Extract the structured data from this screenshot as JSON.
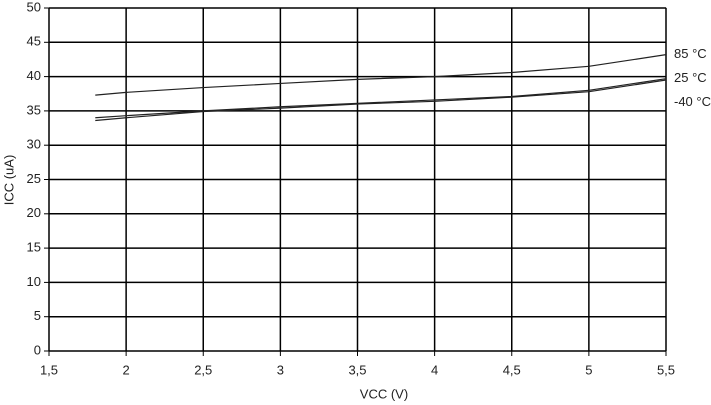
{
  "chart_data": {
    "type": "line",
    "x_label": "VCC (V)",
    "y_label": "ICC (uA)",
    "x": [
      1.8,
      2,
      2.5,
      3,
      3.5,
      4,
      4.5,
      5,
      5.5
    ],
    "series": [
      {
        "name": "85 °C",
        "color": "#222222",
        "values": [
          37.3,
          37.7,
          38.4,
          39.0,
          39.6,
          40.0,
          40.6,
          41.5,
          43.2
        ]
      },
      {
        "name": "25 °C",
        "color": "#222222",
        "values": [
          34.0,
          34.3,
          35.0,
          35.6,
          36.1,
          36.6,
          37.1,
          38.0,
          39.7
        ]
      },
      {
        "name": "-40 °C",
        "color": "#222222",
        "values": [
          33.6,
          34.0,
          34.9,
          35.4,
          36.0,
          36.4,
          37.0,
          37.8,
          39.5
        ]
      }
    ],
    "xlim": [
      1.5,
      5.5
    ],
    "xticks": [
      {
        "value": 1.5,
        "label": "1,5"
      },
      2,
      {
        "value": 2.5,
        "label": "2,5"
      },
      3,
      {
        "value": 3.5,
        "label": "3,5"
      },
      4,
      {
        "value": 4.5,
        "label": "4,5"
      },
      5,
      {
        "value": 5.5,
        "label": "5,5"
      }
    ],
    "ylim": [
      0,
      50
    ],
    "yticks": [
      0,
      5,
      10,
      15,
      20,
      25,
      30,
      35,
      40,
      45,
      50
    ],
    "grid": true
  }
}
